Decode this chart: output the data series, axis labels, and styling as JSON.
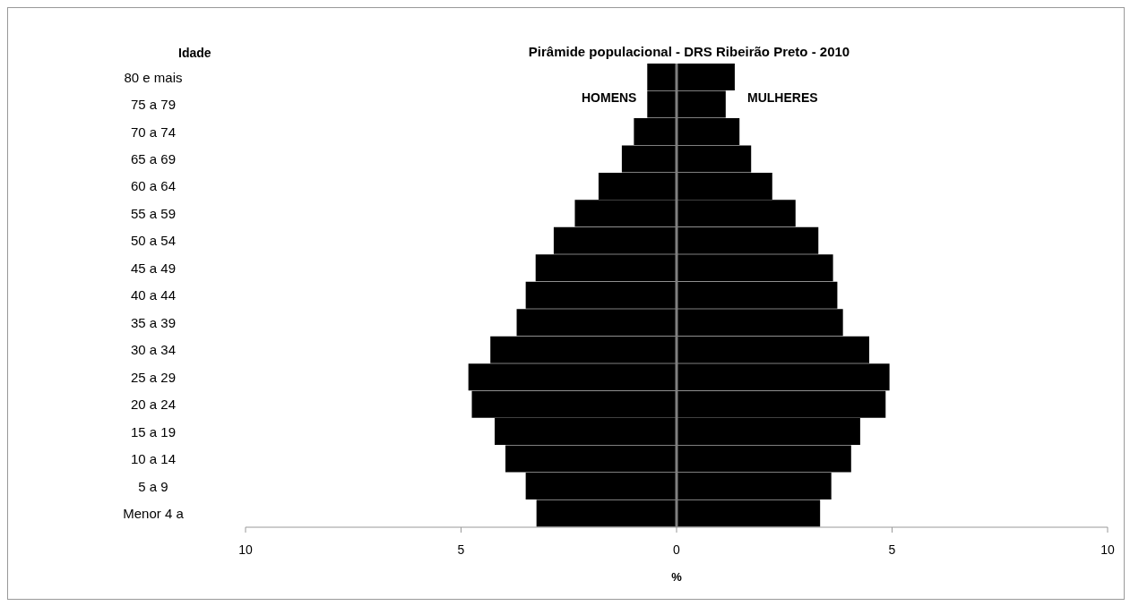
{
  "chart_data": {
    "type": "bar",
    "orientation": "horizontal",
    "stacked": true,
    "title": "Pirâmide populacional - DRS Ribeirão Preto - 2010",
    "ylabel": "Idade",
    "xlabel": "%",
    "categories": [
      "80 e mais",
      "75 a 79",
      "70 a 74",
      "65 a 69",
      "60 a 64",
      "55 a 59",
      "50 a 54",
      "45 a 49",
      "40 a 44",
      "35 a 39",
      "30 a 34",
      "25 a 29",
      "20 a 24",
      "15 a 19",
      "10 a 14",
      "5 a 9",
      "Menor 4 a"
    ],
    "series": [
      {
        "name": "HOMENS",
        "color": "#000000",
        "values": [
          -0.68,
          -0.68,
          -0.99,
          -1.27,
          -1.81,
          -2.36,
          -2.85,
          -3.27,
          -3.5,
          -3.71,
          -4.32,
          -4.83,
          -4.75,
          -4.22,
          -3.97,
          -3.5,
          -3.25
        ]
      },
      {
        "name": "MULHERES",
        "color": "#000000",
        "values": [
          1.35,
          1.14,
          1.46,
          1.73,
          2.22,
          2.76,
          3.29,
          3.63,
          3.73,
          3.86,
          4.47,
          4.94,
          4.85,
          4.26,
          4.05,
          3.59,
          3.33
        ]
      }
    ],
    "xlim": [
      -10,
      10
    ],
    "xticks": [
      {
        "value": -10,
        "label": "10"
      },
      {
        "value": -5,
        "label": "5"
      },
      0,
      5,
      10
    ],
    "ref_lines": [
      {
        "axis": "x",
        "value": 0,
        "color": "#808080"
      }
    ],
    "grid": false,
    "legend": false
  }
}
